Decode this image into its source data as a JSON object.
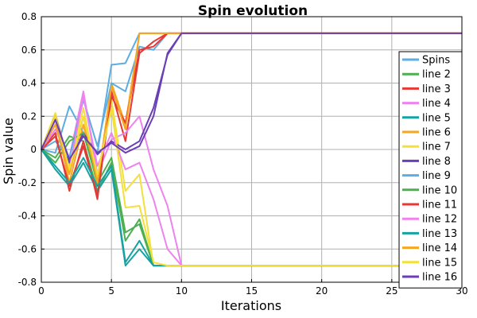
{
  "chart_data": {
    "type": "line",
    "title": "Spin evolution",
    "xlabel": "Iterations",
    "ylabel": "Spin value",
    "xlim": [
      0,
      30
    ],
    "ylim": [
      -0.8,
      0.8
    ],
    "x_ticks": [
      "0",
      "5",
      "10",
      "15",
      "20",
      "25",
      "30"
    ],
    "y_ticks": [
      "-0.8",
      "-0.6",
      "-0.4",
      "-0.2",
      "0",
      "0.2",
      "0.4",
      "0.6",
      "0.8"
    ],
    "grid": true,
    "legend_position": "right",
    "series": [
      {
        "name": "Spins",
        "color": "#5DADE2",
        "x": [
          0,
          1,
          2,
          3,
          4,
          5,
          6,
          7,
          8,
          9,
          10,
          11,
          12,
          13,
          14,
          15,
          16,
          17,
          18,
          19,
          20,
          21,
          22,
          23,
          24,
          25,
          26,
          27,
          28,
          29,
          30
        ],
        "values": [
          0,
          -0.02,
          0.26,
          0.1,
          -0.02,
          0.51,
          0.52,
          0.7,
          0.7,
          0.7,
          0.7,
          0.7,
          0.7,
          0.7,
          0.7,
          0.7,
          0.7,
          0.7,
          0.7,
          0.7,
          0.7,
          0.7,
          0.7,
          0.7,
          0.7,
          0.7,
          0.7,
          0.7,
          0.7,
          0.7,
          0.7
        ]
      },
      {
        "name": "line 2",
        "color": "#4CAF50",
        "x": [
          0,
          1,
          2,
          3,
          4,
          5,
          6,
          7,
          8,
          9,
          10,
          11,
          12,
          13,
          14,
          15,
          16,
          17,
          18,
          19,
          20,
          21,
          22,
          23,
          24,
          25,
          26,
          27,
          28,
          29,
          30
        ],
        "values": [
          0,
          -0.05,
          0.08,
          0.05,
          -0.25,
          -0.08,
          -0.55,
          -0.42,
          -0.7,
          -0.7,
          -0.7,
          -0.7,
          -0.7,
          -0.7,
          -0.7,
          -0.7,
          -0.7,
          -0.7,
          -0.7,
          -0.7,
          -0.7,
          -0.7,
          -0.7,
          -0.7,
          -0.7,
          -0.7,
          -0.7,
          -0.7,
          -0.7,
          -0.7,
          -0.7
        ]
      },
      {
        "name": "line 3",
        "color": "#E53935",
        "x": [
          0,
          1,
          2,
          3,
          4,
          5,
          6,
          7,
          8,
          9,
          10,
          11,
          12,
          13,
          14,
          15,
          16,
          17,
          18,
          19,
          20,
          21,
          22,
          23,
          24,
          25,
          26,
          27,
          28,
          29,
          30
        ],
        "values": [
          0,
          0.1,
          -0.25,
          0.05,
          -0.3,
          0.35,
          0.05,
          0.58,
          0.65,
          0.7,
          0.7,
          0.7,
          0.7,
          0.7,
          0.7,
          0.7,
          0.7,
          0.7,
          0.7,
          0.7,
          0.7,
          0.7,
          0.7,
          0.7,
          0.7,
          0.7,
          0.7,
          0.7,
          0.7,
          0.7,
          0.7
        ]
      },
      {
        "name": "line 4",
        "color": "#EE82EE",
        "x": [
          0,
          1,
          2,
          3,
          4,
          5,
          6,
          7,
          8,
          9,
          10,
          11,
          12,
          13,
          14,
          15,
          16,
          17,
          18,
          19,
          20,
          21,
          22,
          23,
          24,
          25,
          26,
          27,
          28,
          29,
          30
        ],
        "values": [
          0,
          0.12,
          -0.05,
          0.35,
          -0.15,
          0.06,
          0.1,
          0.2,
          -0.12,
          -0.34,
          -0.7,
          -0.7,
          -0.7,
          -0.7,
          -0.7,
          -0.7,
          -0.7,
          -0.7,
          -0.7,
          -0.7,
          -0.7,
          -0.7,
          -0.7,
          -0.7,
          -0.7,
          -0.7,
          -0.7,
          -0.7,
          -0.7,
          -0.7,
          -0.7
        ]
      },
      {
        "name": "line 5",
        "color": "#17A2A2",
        "x": [
          0,
          1,
          2,
          3,
          4,
          5,
          6,
          7,
          8,
          9,
          10,
          11,
          12,
          13,
          14,
          15,
          16,
          17,
          18,
          19,
          20,
          21,
          22,
          23,
          24,
          25,
          26,
          27,
          28,
          29,
          30
        ],
        "values": [
          0,
          -0.12,
          -0.22,
          -0.08,
          -0.25,
          -0.12,
          -0.7,
          -0.6,
          -0.7,
          -0.7,
          -0.7,
          -0.7,
          -0.7,
          -0.7,
          -0.7,
          -0.7,
          -0.7,
          -0.7,
          -0.7,
          -0.7,
          -0.7,
          -0.7,
          -0.7,
          -0.7,
          -0.7,
          -0.7,
          -0.7,
          -0.7,
          -0.7,
          -0.7,
          -0.7
        ]
      },
      {
        "name": "line 6",
        "color": "#F5A623",
        "x": [
          0,
          1,
          2,
          3,
          4,
          5,
          6,
          7,
          8,
          9,
          10,
          11,
          12,
          13,
          14,
          15,
          16,
          17,
          18,
          19,
          20,
          21,
          22,
          23,
          24,
          25,
          26,
          27,
          28,
          29,
          30
        ],
        "values": [
          0,
          0.18,
          -0.2,
          0.15,
          -0.22,
          0.4,
          0.15,
          0.7,
          0.7,
          0.7,
          0.7,
          0.7,
          0.7,
          0.7,
          0.7,
          0.7,
          0.7,
          0.7,
          0.7,
          0.7,
          0.7,
          0.7,
          0.7,
          0.7,
          0.7,
          0.7,
          0.7,
          0.7,
          0.7,
          0.7,
          0.7
        ]
      },
      {
        "name": "line 7",
        "color": "#F2E03C",
        "x": [
          0,
          1,
          2,
          3,
          4,
          5,
          6,
          7,
          8,
          9,
          10,
          11,
          12,
          13,
          14,
          15,
          16,
          17,
          18,
          19,
          20,
          21,
          22,
          23,
          24,
          25,
          26,
          27,
          28,
          29,
          30
        ],
        "values": [
          0,
          0.22,
          -0.1,
          0.25,
          -0.18,
          0.3,
          -0.25,
          -0.15,
          -0.7,
          -0.7,
          -0.7,
          -0.7,
          -0.7,
          -0.7,
          -0.7,
          -0.7,
          -0.7,
          -0.7,
          -0.7,
          -0.7,
          -0.7,
          -0.7,
          -0.7,
          -0.7,
          -0.7,
          -0.7,
          -0.7,
          -0.7,
          -0.7,
          -0.7,
          -0.7
        ]
      },
      {
        "name": "line 8",
        "color": "#6A3FB5",
        "x": [
          0,
          1,
          2,
          3,
          4,
          5,
          6,
          7,
          8,
          9,
          10,
          11,
          12,
          13,
          14,
          15,
          16,
          17,
          18,
          19,
          20,
          21,
          22,
          23,
          24,
          25,
          26,
          27,
          28,
          29,
          30
        ],
        "values": [
          0,
          0.2,
          -0.08,
          0.1,
          -0.03,
          0.05,
          0.0,
          0.05,
          0.25,
          0.57,
          0.7,
          0.7,
          0.7,
          0.7,
          0.7,
          0.7,
          0.7,
          0.7,
          0.7,
          0.7,
          0.7,
          0.7,
          0.7,
          0.7,
          0.7,
          0.7,
          0.7,
          0.7,
          0.7,
          0.7,
          0.7
        ]
      },
      {
        "name": "line 9",
        "color": "#5DADE2",
        "x": [
          0,
          1,
          2,
          3,
          4,
          5,
          6,
          7,
          8,
          9,
          10,
          11,
          12,
          13,
          14,
          15,
          16,
          17,
          18,
          19,
          20,
          21,
          22,
          23,
          24,
          25,
          26,
          27,
          28,
          29,
          30
        ],
        "values": [
          0,
          0.05,
          -0.05,
          0.3,
          0.02,
          0.4,
          0.35,
          0.62,
          0.6,
          0.7,
          0.7,
          0.7,
          0.7,
          0.7,
          0.7,
          0.7,
          0.7,
          0.7,
          0.7,
          0.7,
          0.7,
          0.7,
          0.7,
          0.7,
          0.7,
          0.7,
          0.7,
          0.7,
          0.7,
          0.7,
          0.7
        ]
      },
      {
        "name": "line 10",
        "color": "#4CAF50",
        "x": [
          0,
          1,
          2,
          3,
          4,
          5,
          6,
          7,
          8,
          9,
          10,
          11,
          12,
          13,
          14,
          15,
          16,
          17,
          18,
          19,
          20,
          21,
          22,
          23,
          24,
          25,
          26,
          27,
          28,
          29,
          30
        ],
        "values": [
          0,
          -0.08,
          0.05,
          0.1,
          -0.2,
          -0.05,
          -0.5,
          -0.45,
          -0.7,
          -0.7,
          -0.7,
          -0.7,
          -0.7,
          -0.7,
          -0.7,
          -0.7,
          -0.7,
          -0.7,
          -0.7,
          -0.7,
          -0.7,
          -0.7,
          -0.7,
          -0.7,
          -0.7,
          -0.7,
          -0.7,
          -0.7,
          -0.7,
          -0.7,
          -0.7
        ]
      },
      {
        "name": "line 11",
        "color": "#E53935",
        "x": [
          0,
          1,
          2,
          3,
          4,
          5,
          6,
          7,
          8,
          9,
          10,
          11,
          12,
          13,
          14,
          15,
          16,
          17,
          18,
          19,
          20,
          21,
          22,
          23,
          24,
          25,
          26,
          27,
          28,
          29,
          30
        ],
        "values": [
          0,
          0.08,
          -0.22,
          0.02,
          -0.28,
          0.32,
          0.16,
          0.6,
          0.62,
          0.7,
          0.7,
          0.7,
          0.7,
          0.7,
          0.7,
          0.7,
          0.7,
          0.7,
          0.7,
          0.7,
          0.7,
          0.7,
          0.7,
          0.7,
          0.7,
          0.7,
          0.7,
          0.7,
          0.7,
          0.7,
          0.7
        ]
      },
      {
        "name": "line 12",
        "color": "#EE82EE",
        "x": [
          0,
          1,
          2,
          3,
          4,
          5,
          6,
          7,
          8,
          9,
          10,
          11,
          12,
          13,
          14,
          15,
          16,
          17,
          18,
          19,
          20,
          21,
          22,
          23,
          24,
          25,
          26,
          27,
          28,
          29,
          30
        ],
        "values": [
          0,
          0.15,
          -0.12,
          0.32,
          -0.1,
          0.1,
          -0.12,
          -0.08,
          -0.3,
          -0.6,
          -0.7,
          -0.7,
          -0.7,
          -0.7,
          -0.7,
          -0.7,
          -0.7,
          -0.7,
          -0.7,
          -0.7,
          -0.7,
          -0.7,
          -0.7,
          -0.7,
          -0.7,
          -0.7,
          -0.7,
          -0.7,
          -0.7,
          -0.7,
          -0.7
        ]
      },
      {
        "name": "line 13",
        "color": "#17A2A2",
        "x": [
          0,
          1,
          2,
          3,
          4,
          5,
          6,
          7,
          8,
          9,
          10,
          11,
          12,
          13,
          14,
          15,
          16,
          17,
          18,
          19,
          20,
          21,
          22,
          23,
          24,
          25,
          26,
          27,
          28,
          29,
          30
        ],
        "values": [
          0,
          -0.1,
          -0.2,
          -0.05,
          -0.22,
          -0.1,
          -0.68,
          -0.55,
          -0.7,
          -0.7,
          -0.7,
          -0.7,
          -0.7,
          -0.7,
          -0.7,
          -0.7,
          -0.7,
          -0.7,
          -0.7,
          -0.7,
          -0.7,
          -0.7,
          -0.7,
          -0.7,
          -0.7,
          -0.7,
          -0.7,
          -0.7,
          -0.7,
          -0.7,
          -0.7
        ]
      },
      {
        "name": "line 14",
        "color": "#F5A623",
        "x": [
          0,
          1,
          2,
          3,
          4,
          5,
          6,
          7,
          8,
          9,
          10,
          11,
          12,
          13,
          14,
          15,
          16,
          17,
          18,
          19,
          20,
          21,
          22,
          23,
          24,
          25,
          26,
          27,
          28,
          29,
          30
        ],
        "values": [
          0,
          0.15,
          -0.15,
          0.2,
          -0.2,
          0.38,
          0.12,
          0.7,
          0.7,
          0.7,
          0.7,
          0.7,
          0.7,
          0.7,
          0.7,
          0.7,
          0.7,
          0.7,
          0.7,
          0.7,
          0.7,
          0.7,
          0.7,
          0.7,
          0.7,
          0.7,
          0.7,
          0.7,
          0.7,
          0.7,
          0.7
        ]
      },
      {
        "name": "line 15",
        "color": "#F2E03C",
        "x": [
          0,
          1,
          2,
          3,
          4,
          5,
          6,
          7,
          8,
          9,
          10,
          11,
          12,
          13,
          14,
          15,
          16,
          17,
          18,
          19,
          20,
          21,
          22,
          23,
          24,
          25,
          26,
          27,
          28,
          29,
          30
        ],
        "values": [
          0,
          0.2,
          -0.12,
          0.2,
          -0.15,
          0.25,
          -0.35,
          -0.34,
          -0.68,
          -0.7,
          -0.7,
          -0.7,
          -0.7,
          -0.7,
          -0.7,
          -0.7,
          -0.7,
          -0.7,
          -0.7,
          -0.7,
          -0.7,
          -0.7,
          -0.7,
          -0.7,
          -0.7,
          -0.7,
          -0.7,
          -0.7,
          -0.7,
          -0.7,
          -0.7
        ]
      },
      {
        "name": "line 16",
        "color": "#6A3FB5",
        "x": [
          0,
          1,
          2,
          3,
          4,
          5,
          6,
          7,
          8,
          9,
          10,
          11,
          12,
          13,
          14,
          15,
          16,
          17,
          18,
          19,
          20,
          21,
          22,
          23,
          24,
          25,
          26,
          27,
          28,
          29,
          30
        ],
        "values": [
          0,
          0.18,
          -0.06,
          0.08,
          -0.02,
          0.04,
          -0.02,
          0.02,
          0.2,
          0.58,
          0.7,
          0.7,
          0.7,
          0.7,
          0.7,
          0.7,
          0.7,
          0.7,
          0.7,
          0.7,
          0.7,
          0.7,
          0.7,
          0.7,
          0.7,
          0.7,
          0.7,
          0.7,
          0.7,
          0.7,
          0.7
        ]
      }
    ]
  }
}
